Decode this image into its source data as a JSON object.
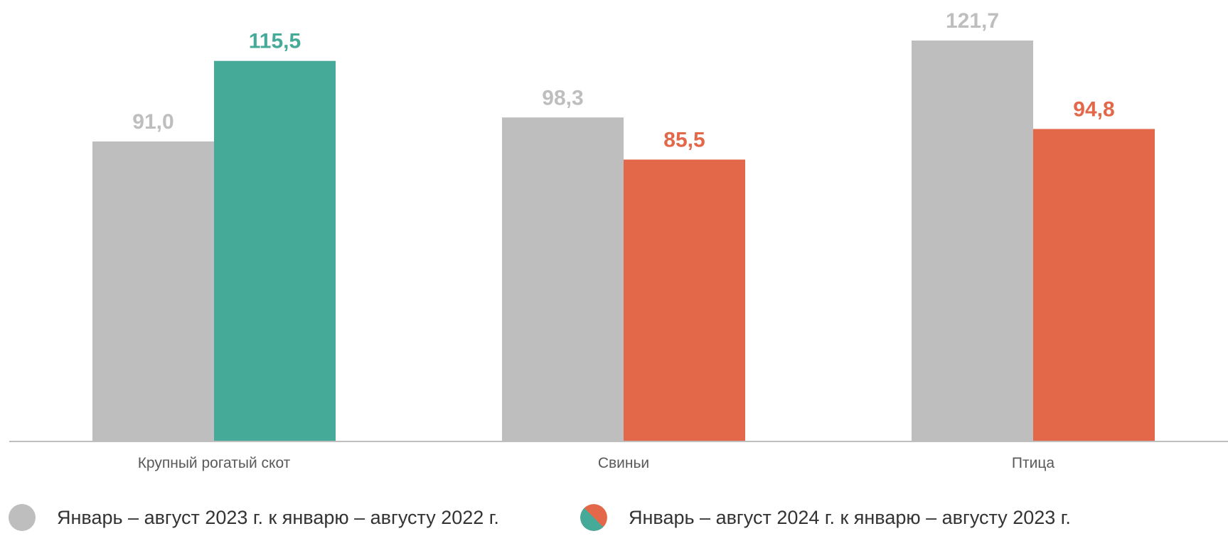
{
  "chart_data": {
    "type": "bar",
    "categories": [
      "Крупный рогатый скот",
      "Свиньи",
      "Птица"
    ],
    "series": [
      {
        "name": "Январь – август 2023 г. к январю – августу 2022 г.",
        "values": [
          91.0,
          98.3,
          121.7
        ],
        "labels": [
          "91,0",
          "98,3",
          "121,7"
        ],
        "colors": [
          "#bebebe",
          "#bebebe",
          "#bebebe"
        ]
      },
      {
        "name": "Январь – август 2024 г. к январю – августу 2023 г.",
        "values": [
          115.5,
          85.5,
          94.8
        ],
        "labels": [
          "115,5",
          "85,5",
          "94,8"
        ],
        "colors": [
          "#46aa98",
          "#e3684a",
          "#e3684a"
        ]
      }
    ],
    "ylim": [
      0,
      121.7
    ],
    "grid": false,
    "legend_position": "bottom",
    "colors": {
      "gray": "#bebebe",
      "teal": "#46aa98",
      "orange": "#e3684a",
      "axis": "#bfbfbf",
      "category_text": "#595959"
    }
  }
}
